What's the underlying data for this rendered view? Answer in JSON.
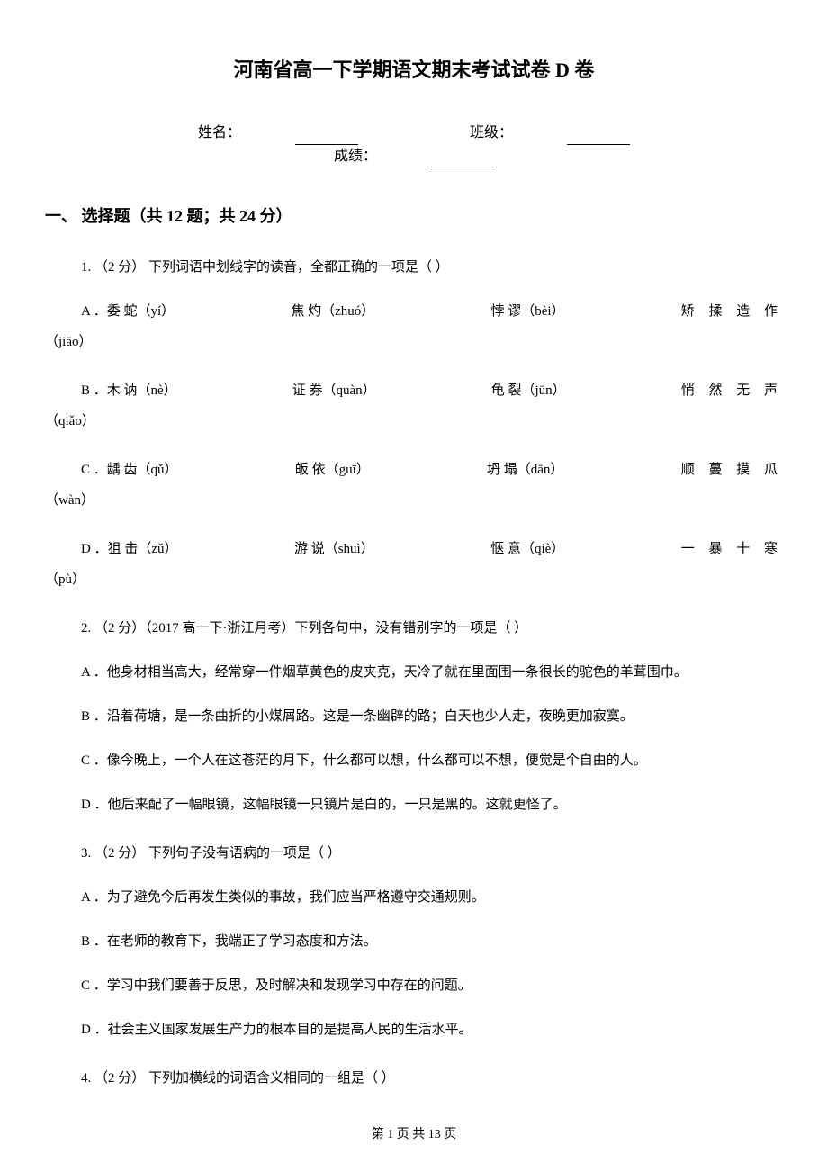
{
  "title": "河南省高一下学期语文期末考试试卷 D 卷",
  "info": {
    "name_label": "姓名：",
    "class_label": "班级：",
    "score_label": "成绩："
  },
  "section": {
    "header": "一、 选择题（共 12 题；共 24 分）"
  },
  "q1": {
    "prompt": "1.  （2 分） 下列词语中划线字的读音，全都正确的一项是（    ）",
    "optA_label": "A ．",
    "optA_1": "委 蛇（yí）",
    "optA_2": "焦 灼（zhuó）",
    "optA_3": "悖 谬（bèi）",
    "optA_4": "矫 揉 造 作",
    "optA_sub": "（jiāo）",
    "optB_label": "B ．",
    "optB_1": "木 讷（nè）",
    "optB_2": "证 券（quàn）",
    "optB_3": "龟 裂（jūn）",
    "optB_4": "悄 然 无 声",
    "optB_sub": "（qiǎo）",
    "optC_label": "C ．",
    "optC_1": "龋 齿（qǔ）",
    "optC_2": "皈 依（guī）",
    "optC_3": "坍 塌（dān）",
    "optC_4": "顺 蔓 摸 瓜",
    "optC_sub": "（wàn）",
    "optD_label": "D ．",
    "optD_1": "狙 击（zǔ）",
    "optD_2": "游 说（shuì）",
    "optD_3": "惬 意（qiè）",
    "optD_4": "一 暴 十 寒",
    "optD_sub": "（pù）"
  },
  "q2": {
    "prompt": "2.  （2 分）（2017 高一下·浙江月考）下列各句中，没有错别字的一项是（    ）",
    "optA": "A ．他身材相当高大，经常穿一件烟草黄色的皮夹克，天冷了就在里面围一条很长的驼色的羊茸围巾。",
    "optB": "B ．沿着荷塘，是一条曲折的小煤屑路。这是一条幽辟的路；白天也少人走，夜晚更加寂寞。",
    "optC": "C ．像今晚上，一个人在这苍茫的月下，什么都可以想，什么都可以不想，便觉是个自由的人。",
    "optD": "D ．他后来配了一幅眼镜，这幅眼镜一只镜片是白的，一只是黑的。这就更怪了。"
  },
  "q3": {
    "prompt": "3.  （2 分） 下列句子没有语病的一项是（    ）",
    "optA": "A ．为了避免今后再发生类似的事故，我们应当严格遵守交通规则。",
    "optB": "B ．在老师的教育下，我端正了学习态度和方法。",
    "optC": "C ．学习中我们要善于反思，及时解决和发现学习中存在的问题。",
    "optD": "D ．社会主义国家发展生产力的根本目的是提高人民的生活水平。"
  },
  "q4": {
    "prompt": "4.  （2 分） 下列加横线的词语含义相同的一组是（    ）"
  },
  "footer": "第 1 页 共 13 页"
}
